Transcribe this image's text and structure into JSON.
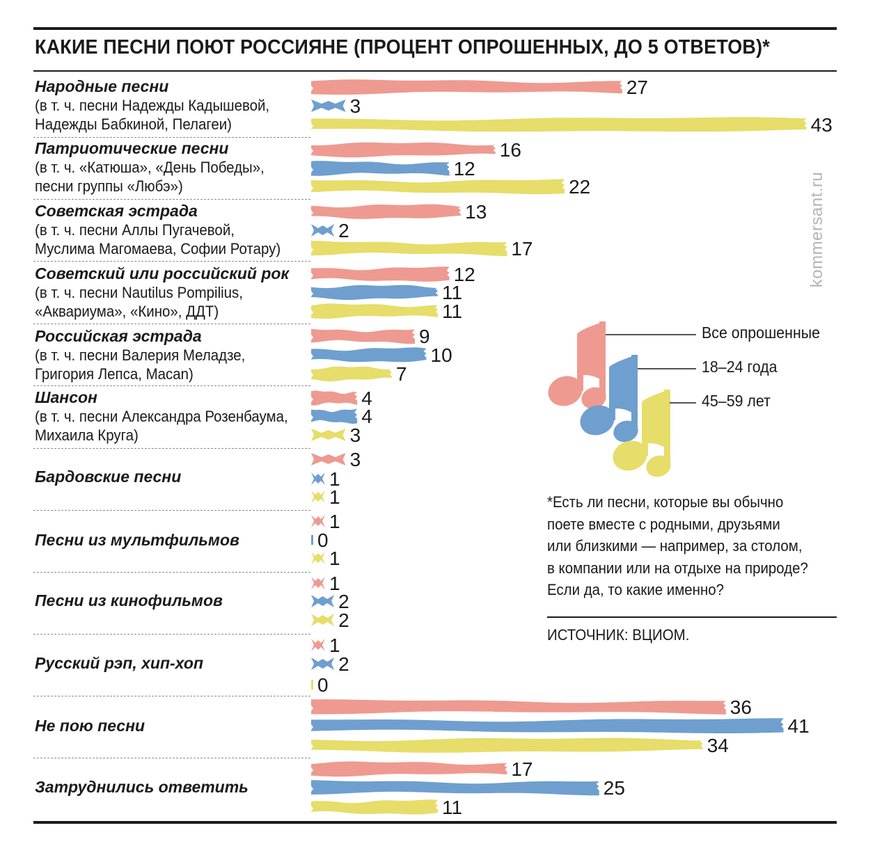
{
  "title": "КАКИЕ ПЕСНИ ПОЮТ РОССИЯНЕ (ПРОЦЕНТ ОПРОШЕННЫХ, ДО 5 ОТВЕТОВ)*",
  "watermark": "kommersant.ru",
  "colors": {
    "all": "#ee9a90",
    "age18_24": "#6e9fcf",
    "age45_59": "#e6dd6a"
  },
  "legend": [
    {
      "label": "Все опрошенные",
      "color": "#ee9a90"
    },
    {
      "label": "18–24 года",
      "color": "#6e9fcf"
    },
    {
      "label": "45–59 лет",
      "color": "#e6dd6a"
    }
  ],
  "legend_icon": "music-notes-icon",
  "footnote": [
    "*Есть ли песни, которые вы обычно",
    "поете вместе с родными, друзьями",
    "или близкими — например, за столом,",
    "в компании или на отдыхе на природе?",
    "Если да, то какие именно?"
  ],
  "source": "ИСТОЧНИК: ВЦИОМ.",
  "categories": [
    {
      "title": "Народные песни",
      "subtitle": [
        "(в т. ч. песни Надежды Кадышевой,",
        "Надежды Бабкиной, Пелагеи)"
      ]
    },
    {
      "title": "Патриотические песни",
      "subtitle": [
        "(в т. ч. «Катюша», «День Победы»,",
        "песни группы «Любэ»)"
      ]
    },
    {
      "title": "Советская эстрада",
      "subtitle": [
        "(в т. ч. песни Аллы Пугачевой,",
        "Муслима Магомаева, Софии Ротару)"
      ]
    },
    {
      "title": "Советский или российский рок",
      "subtitle": [
        "(в т. ч. песни Nautilus Pompilius,",
        "«Аквариума», «Кино», ДДТ)"
      ]
    },
    {
      "title": "Российская эстрада",
      "subtitle": [
        "(в т. ч. песни Валерия Меладзе,",
        " Григория Лепса, Macan)"
      ]
    },
    {
      "title": "Шансон",
      "subtitle": [
        "(в т. ч. песни Александра Розенбаума,",
        "Михаила Круга)"
      ]
    },
    {
      "title": "Бардовские песни",
      "subtitle": []
    },
    {
      "title": "Песни из мультфильмов",
      "subtitle": []
    },
    {
      "title": "Песни из кинофильмов",
      "subtitle": []
    },
    {
      "title": "Русский рэп, хип-хоп",
      "subtitle": []
    },
    {
      "title": "Не пою песни",
      "subtitle": []
    },
    {
      "title": "Затруднились ответить",
      "subtitle": []
    }
  ],
  "chart_data": {
    "type": "bar",
    "orientation": "horizontal",
    "title": "КАКИЕ ПЕСНИ ПОЮТ РОССИЯНЕ (ПРОЦЕНТ ОПРОШЕННЫХ, ДО 5 ОТВЕТОВ)*",
    "categories": [
      "Народные песни",
      "Патриотические песни",
      "Советская эстрада",
      "Советский или российский рок",
      "Российская эстрада",
      "Шансон",
      "Бардовские песни",
      "Песни из мультфильмов",
      "Песни из кинофильмов",
      "Русский рэп, хип-хоп",
      "Не пою песни",
      "Затруднились ответить"
    ],
    "series": [
      {
        "name": "Все опрошенные",
        "color": "#ee9a90",
        "values": [
          27,
          16,
          13,
          12,
          9,
          4,
          3,
          1,
          1,
          1,
          36,
          17
        ]
      },
      {
        "name": "18–24 года",
        "color": "#6e9fcf",
        "values": [
          3,
          12,
          2,
          11,
          10,
          4,
          1,
          0,
          2,
          2,
          41,
          25
        ]
      },
      {
        "name": "45–59 лет",
        "color": "#e6dd6a",
        "values": [
          43,
          22,
          17,
          11,
          7,
          3,
          1,
          1,
          2,
          0,
          34,
          11
        ]
      }
    ],
    "legend": "right",
    "grid": false
  }
}
